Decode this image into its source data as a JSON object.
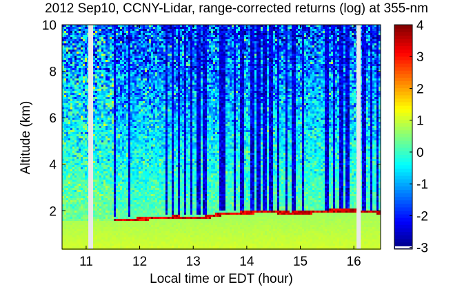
{
  "chart_data": {
    "type": "heatmap",
    "title": "2012 Sep10, CCNY-Lidar, range-corrected returns (log) at 355-nm",
    "xlabel": "Local time or EDT (hour)",
    "ylabel": "Altitude (km)",
    "xlim": [
      10.55,
      16.5
    ],
    "ylim": [
      0.35,
      10.0
    ],
    "xticks": [
      11,
      12,
      13,
      14,
      15,
      16
    ],
    "yticks": [
      2,
      4,
      6,
      8,
      10
    ],
    "colorbar": {
      "min": -3.05,
      "max": 4.0,
      "ticks": [
        -3,
        -2,
        -1,
        0,
        1,
        2,
        3,
        4
      ],
      "colormap": "jet"
    },
    "data_gaps_hour": [
      [
        11.04,
        11.13
      ],
      [
        16.05,
        16.13
      ]
    ],
    "boundary_layer_top_km": [
      {
        "t": 11.6,
        "z": 1.62
      },
      {
        "t": 11.9,
        "z": 1.63
      },
      {
        "t": 12.12,
        "z": 1.68
      },
      {
        "t": 12.45,
        "z": 1.72
      },
      {
        "t": 12.7,
        "z": 1.73
      },
      {
        "t": 12.95,
        "z": 1.7
      },
      {
        "t": 13.2,
        "z": 1.72
      },
      {
        "t": 13.6,
        "z": 1.9
      },
      {
        "t": 13.85,
        "z": 1.9
      },
      {
        "t": 14.1,
        "z": 1.95
      },
      {
        "t": 14.45,
        "z": 1.98
      },
      {
        "t": 14.8,
        "z": 1.9
      },
      {
        "t": 15.05,
        "z": 1.93
      },
      {
        "t": 15.6,
        "z": 2.0
      },
      {
        "t": 15.85,
        "z": 2.02
      },
      {
        "t": 16.2,
        "z": 1.98
      },
      {
        "t": 16.45,
        "z": 1.95
      }
    ],
    "clear_air_columns": [
      {
        "t": 11.55,
        "w": 0.03,
        "from_km": 1.7
      },
      {
        "t": 11.82,
        "w": 0.03,
        "from_km": 1.7
      },
      {
        "t": 12.13,
        "w": 0.03,
        "from_km": 1.75
      },
      {
        "t": 12.5,
        "w": 0.07,
        "from_km": 1.8
      },
      {
        "t": 12.63,
        "w": 0.05,
        "from_km": 1.8
      },
      {
        "t": 12.74,
        "w": 0.06,
        "from_km": 1.8
      },
      {
        "t": 12.86,
        "w": 0.05,
        "from_km": 1.8
      },
      {
        "t": 12.97,
        "w": 0.06,
        "from_km": 1.8
      },
      {
        "t": 13.1,
        "w": 0.04,
        "from_km": 1.8
      },
      {
        "t": 13.22,
        "w": 0.05,
        "from_km": 1.8
      },
      {
        "t": 13.55,
        "w": 0.09,
        "from_km": 2.0
      },
      {
        "t": 13.77,
        "w": 0.06,
        "from_km": 2.0
      },
      {
        "t": 13.92,
        "w": 0.07,
        "from_km": 2.0
      },
      {
        "t": 14.1,
        "w": 0.06,
        "from_km": 2.0
      },
      {
        "t": 14.22,
        "w": 0.05,
        "from_km": 2.0
      },
      {
        "t": 14.33,
        "w": 0.06,
        "from_km": 2.0
      },
      {
        "t": 14.46,
        "w": 0.07,
        "from_km": 2.0
      },
      {
        "t": 14.6,
        "w": 0.05,
        "from_km": 2.0
      },
      {
        "t": 14.74,
        "w": 0.06,
        "from_km": 2.0
      },
      {
        "t": 14.88,
        "w": 0.06,
        "from_km": 2.0
      },
      {
        "t": 15.05,
        "w": 0.06,
        "from_km": 2.0
      },
      {
        "t": 15.5,
        "w": 0.06,
        "from_km": 2.05
      },
      {
        "t": 15.63,
        "w": 0.06,
        "from_km": 2.05
      },
      {
        "t": 15.76,
        "w": 0.07,
        "from_km": 2.05
      },
      {
        "t": 15.88,
        "w": 0.06,
        "from_km": 2.05
      },
      {
        "t": 16.2,
        "w": 0.06,
        "from_km": 2.05
      },
      {
        "t": 16.33,
        "w": 0.06,
        "from_km": 2.05
      },
      {
        "t": 16.45,
        "w": 0.05,
        "from_km": 2.05
      }
    ]
  }
}
